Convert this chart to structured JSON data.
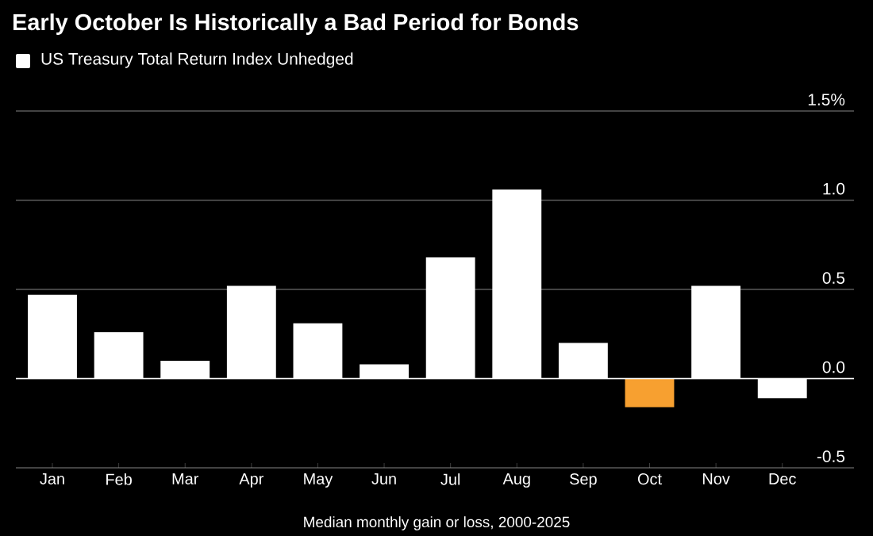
{
  "chart_data": {
    "type": "bar",
    "title": "Early October Is Historically a Bad Period for Bonds",
    "xlabel": "Median monthly gain or loss, 2000-2025",
    "categories": [
      "Jan",
      "Feb",
      "Mar",
      "Apr",
      "May",
      "Jun",
      "Jul",
      "Aug",
      "Sep",
      "Oct",
      "Nov",
      "Dec"
    ],
    "series": [
      {
        "name": "US Treasury Total Return Index Unhedged",
        "values": [
          0.47,
          0.26,
          0.1,
          0.52,
          0.31,
          0.08,
          0.68,
          1.06,
          0.2,
          -0.16,
          0.52,
          -0.11
        ],
        "colors": [
          "#ffffff",
          "#ffffff",
          "#ffffff",
          "#ffffff",
          "#ffffff",
          "#ffffff",
          "#ffffff",
          "#ffffff",
          "#ffffff",
          "#f7a030",
          "#ffffff",
          "#ffffff"
        ]
      }
    ],
    "ylim": [
      -0.5,
      1.5
    ],
    "yticks": [
      {
        "value": -0.5,
        "label": "-0.5"
      },
      {
        "value": 0.0,
        "label": "0.0"
      },
      {
        "value": 0.5,
        "label": "0.5"
      },
      {
        "value": 1.0,
        "label": "1.0"
      },
      {
        "value": 1.5,
        "label": "1.5%"
      }
    ],
    "grid": "y",
    "legend": "top left"
  }
}
